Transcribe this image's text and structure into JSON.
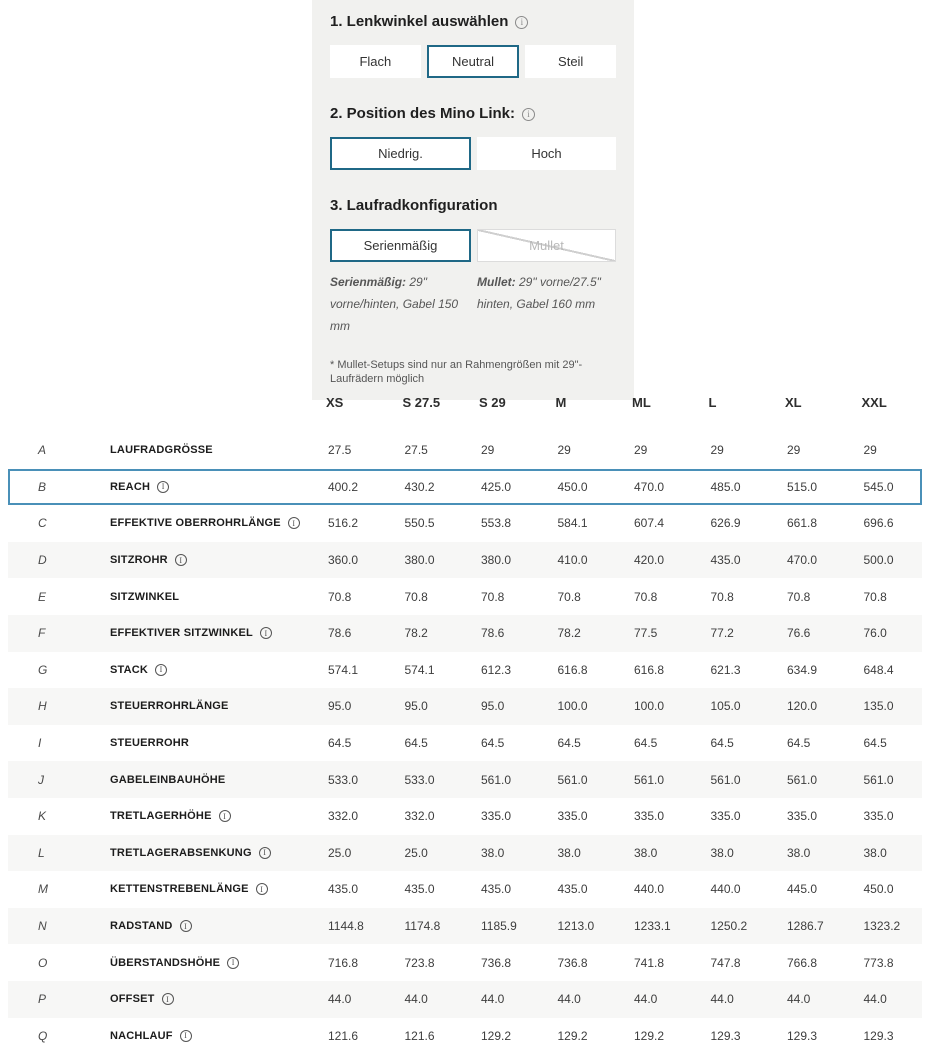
{
  "config": {
    "sections": [
      {
        "title": "1. Lenkwinkel auswählen",
        "has_info": true,
        "options": [
          {
            "label": "Flach",
            "state": "normal"
          },
          {
            "label": "Neutral",
            "state": "selected"
          },
          {
            "label": "Steil",
            "state": "normal"
          }
        ]
      },
      {
        "title": "2. Position des Mino Link:",
        "has_info": true,
        "options": [
          {
            "label": "Niedrig.",
            "state": "selected"
          },
          {
            "label": "Hoch",
            "state": "normal"
          }
        ]
      },
      {
        "title": "3. Laufradkonfiguration",
        "has_info": false,
        "options": [
          {
            "label": "Serienmäßig",
            "state": "selected"
          },
          {
            "label": "Mullet",
            "state": "disabled"
          }
        ]
      }
    ],
    "descriptions": [
      {
        "bold": "Serienmäßig:",
        "text": " 29\" vorne/hinten, Gabel 150 mm"
      },
      {
        "bold": "Mullet:",
        "text": " 29\" vorne/27.5\" hinten, Gabel 160 mm"
      }
    ],
    "footnote": "* Mullet-Setups sind nur an Rahmengrößen mit 29\"-Laufrädern möglich"
  },
  "table": {
    "columns": [
      "XS",
      "S 27.5",
      "S 29",
      "M",
      "ML",
      "L",
      "XL",
      "XXL"
    ],
    "rows": [
      {
        "letter": "A",
        "label": "LAUFRADGRÖSSE",
        "info": false,
        "highlight": false,
        "values": [
          "27.5",
          "27.5",
          "29",
          "29",
          "29",
          "29",
          "29",
          "29"
        ]
      },
      {
        "letter": "B",
        "label": "REACH",
        "info": true,
        "highlight": true,
        "values": [
          "400.2",
          "430.2",
          "425.0",
          "450.0",
          "470.0",
          "485.0",
          "515.0",
          "545.0"
        ]
      },
      {
        "letter": "C",
        "label": "EFFEKTIVE OBERROHRLÄNGE",
        "info": true,
        "highlight": false,
        "values": [
          "516.2",
          "550.5",
          "553.8",
          "584.1",
          "607.4",
          "626.9",
          "661.8",
          "696.6"
        ]
      },
      {
        "letter": "D",
        "label": "SITZROHR",
        "info": true,
        "highlight": false,
        "values": [
          "360.0",
          "380.0",
          "380.0",
          "410.0",
          "420.0",
          "435.0",
          "470.0",
          "500.0"
        ]
      },
      {
        "letter": "E",
        "label": "SITZWINKEL",
        "info": false,
        "highlight": false,
        "values": [
          "70.8",
          "70.8",
          "70.8",
          "70.8",
          "70.8",
          "70.8",
          "70.8",
          "70.8"
        ]
      },
      {
        "letter": "F",
        "label": "EFFEKTIVER SITZWINKEL",
        "info": true,
        "highlight": false,
        "values": [
          "78.6",
          "78.2",
          "78.6",
          "78.2",
          "77.5",
          "77.2",
          "76.6",
          "76.0"
        ]
      },
      {
        "letter": "G",
        "label": "STACK",
        "info": true,
        "highlight": false,
        "values": [
          "574.1",
          "574.1",
          "612.3",
          "616.8",
          "616.8",
          "621.3",
          "634.9",
          "648.4"
        ]
      },
      {
        "letter": "H",
        "label": "STEUERROHRLÄNGE",
        "info": false,
        "highlight": false,
        "values": [
          "95.0",
          "95.0",
          "95.0",
          "100.0",
          "100.0",
          "105.0",
          "120.0",
          "135.0"
        ]
      },
      {
        "letter": "I",
        "label": "STEUERROHR",
        "info": false,
        "highlight": false,
        "values": [
          "64.5",
          "64.5",
          "64.5",
          "64.5",
          "64.5",
          "64.5",
          "64.5",
          "64.5"
        ]
      },
      {
        "letter": "J",
        "label": "GABELEINBAUHÖHE",
        "info": false,
        "highlight": false,
        "values": [
          "533.0",
          "533.0",
          "561.0",
          "561.0",
          "561.0",
          "561.0",
          "561.0",
          "561.0"
        ]
      },
      {
        "letter": "K",
        "label": "TRETLAGERHÖHE",
        "info": true,
        "highlight": false,
        "values": [
          "332.0",
          "332.0",
          "335.0",
          "335.0",
          "335.0",
          "335.0",
          "335.0",
          "335.0"
        ]
      },
      {
        "letter": "L",
        "label": "TRETLAGERABSENKUNG",
        "info": true,
        "highlight": false,
        "values": [
          "25.0",
          "25.0",
          "38.0",
          "38.0",
          "38.0",
          "38.0",
          "38.0",
          "38.0"
        ]
      },
      {
        "letter": "M",
        "label": "KETTENSTREBENLÄNGE",
        "info": true,
        "highlight": false,
        "values": [
          "435.0",
          "435.0",
          "435.0",
          "435.0",
          "440.0",
          "440.0",
          "445.0",
          "450.0"
        ]
      },
      {
        "letter": "N",
        "label": "RADSTAND",
        "info": true,
        "highlight": false,
        "values": [
          "1144.8",
          "1174.8",
          "1185.9",
          "1213.0",
          "1233.1",
          "1250.2",
          "1286.7",
          "1323.2"
        ]
      },
      {
        "letter": "O",
        "label": "ÜBERSTANDSHÖHE",
        "info": true,
        "highlight": false,
        "values": [
          "716.8",
          "723.8",
          "736.8",
          "736.8",
          "741.8",
          "747.8",
          "766.8",
          "773.8"
        ]
      },
      {
        "letter": "P",
        "label": "OFFSET",
        "info": true,
        "highlight": false,
        "values": [
          "44.0",
          "44.0",
          "44.0",
          "44.0",
          "44.0",
          "44.0",
          "44.0",
          "44.0"
        ]
      },
      {
        "letter": "Q",
        "label": "NACHLAUF",
        "info": true,
        "highlight": false,
        "values": [
          "121.6",
          "121.6",
          "129.2",
          "129.2",
          "129.2",
          "129.3",
          "129.3",
          "129.3"
        ]
      }
    ]
  },
  "colors": {
    "panel_background": "#f1f1ef",
    "selected_border": "#1f6886",
    "highlight_row_border": "#4a90b8",
    "stripe": "#f7f7f6"
  }
}
